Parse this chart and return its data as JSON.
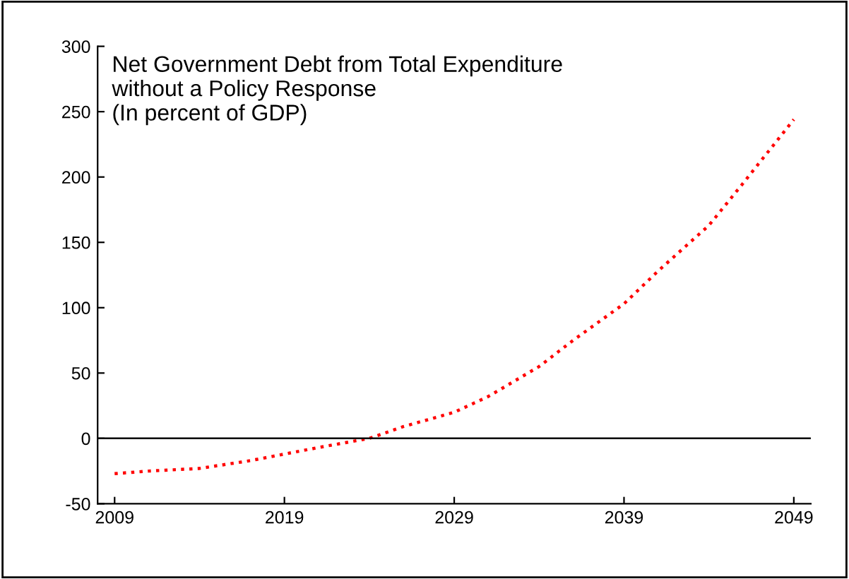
{
  "chart_data": {
    "type": "line",
    "title": "Net Government Debt from Total Expenditure\nwithout a Policy Response\n(In percent of GDP)",
    "x": [
      2009,
      2011,
      2014,
      2017,
      2019,
      2021,
      2024,
      2026,
      2029,
      2031,
      2034,
      2036,
      2039,
      2041,
      2044,
      2046,
      2049
    ],
    "series": [
      {
        "color": "#ff0000",
        "values": [
          -27,
          -25,
          -23,
          -17,
          -12,
          -7,
          0,
          9,
          20,
          32,
          55,
          75,
          103,
          128,
          163,
          195,
          244
        ]
      }
    ],
    "xlim": [
      2008,
      2050
    ],
    "xticks": [
      2009,
      2019,
      2029,
      2039,
      2049
    ],
    "ylim": [
      -50,
      300
    ],
    "yticks": [
      -50,
      0,
      50,
      100,
      150,
      200,
      250,
      300
    ],
    "ref_lines": [
      {
        "axis": "y",
        "value": 0,
        "color": "#000000",
        "line_style": "solid"
      }
    ],
    "line_style": "dotted",
    "marker": "none",
    "grid": false,
    "legend": false
  }
}
